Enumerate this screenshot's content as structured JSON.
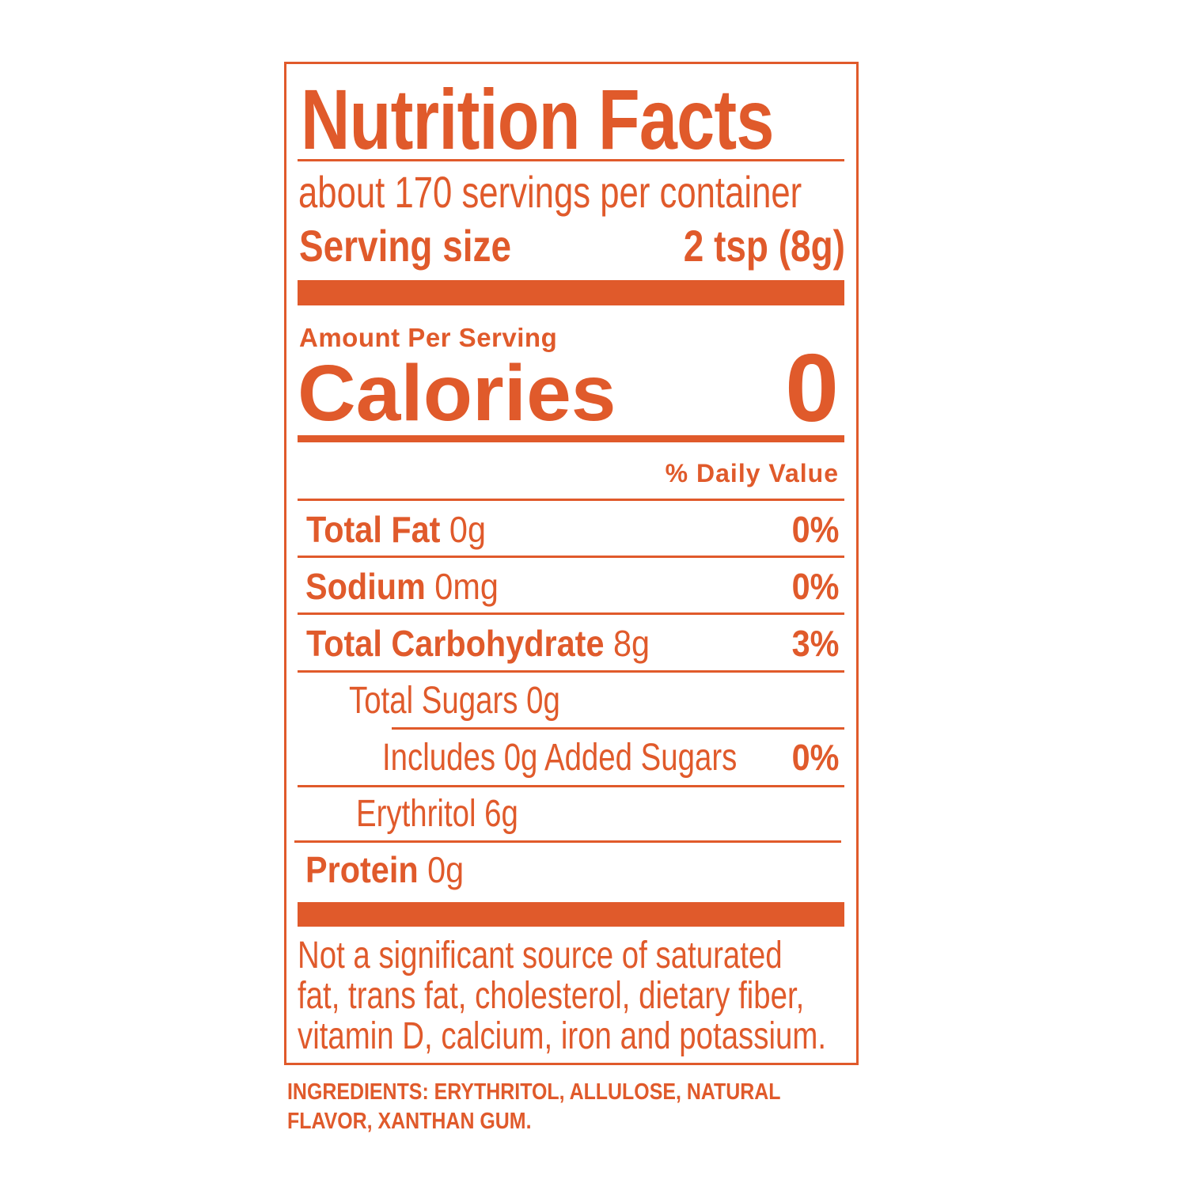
{
  "label": {
    "title": "Nutrition Facts",
    "servings_per_container": "about 170 servings per container",
    "serving_size_label": "Serving size",
    "serving_size_value": "2 tsp (8g)",
    "amount_per_serving": "Amount Per Serving",
    "calories_label": "Calories",
    "calories_value": "0",
    "daily_value_header": "% Daily Value",
    "rows": [
      {
        "name": "Total Fat",
        "amount": "0g",
        "dv": "0%"
      },
      {
        "name": "Sodium",
        "amount": "0mg",
        "dv": "0%"
      },
      {
        "name": "Total Carbohydrate",
        "amount": "8g",
        "dv": "3%"
      },
      {
        "name": "Total Sugars 0g"
      },
      {
        "name": "Includes 0g Added Sugars",
        "dv": "0%"
      },
      {
        "name": "Erythritol 6g"
      },
      {
        "name": "Protein",
        "amount": "0g"
      }
    ],
    "footnote": [
      "Not a significant source of saturated",
      "fat, trans fat, cholesterol, dietary fiber,",
      "vitamin D, calcium, iron and potassium."
    ]
  },
  "ingredients": [
    "INGREDIENTS: ERYTHRITOL, ALLULOSE, NATURAL",
    "FLAVOR, XANTHAN GUM."
  ],
  "colors": {
    "accent": "#E05A2B"
  }
}
